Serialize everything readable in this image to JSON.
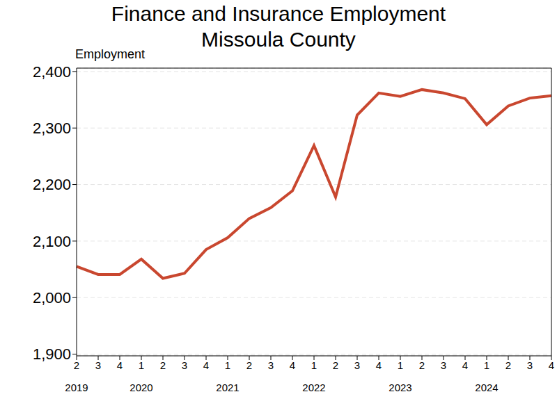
{
  "chart_data": {
    "type": "line",
    "title": "Finance and Insurance Employment",
    "subtitle": "Missoula County",
    "y_label": "Employment",
    "categories": [
      "2",
      "3",
      "4",
      "1",
      "2",
      "3",
      "4",
      "1",
      "2",
      "3",
      "4",
      "1",
      "2",
      "3",
      "4",
      "1",
      "2",
      "3",
      "4",
      "1",
      "2",
      "3",
      "4"
    ],
    "category_groups": [
      "2019",
      null,
      null,
      "2020",
      null,
      null,
      null,
      "2021",
      null,
      null,
      null,
      "2022",
      null,
      null,
      null,
      "2023",
      null,
      null,
      null,
      "2024",
      null,
      null,
      null
    ],
    "series": [
      {
        "name": "Employment",
        "color": "#c9472f",
        "values": [
          2055,
          2041,
          2041,
          2068,
          2034,
          2043,
          2085,
          2106,
          2140,
          2159,
          2189,
          2269,
          2178,
          2323,
          2362,
          2356,
          2368,
          2362,
          2352,
          2306,
          2339,
          2353,
          2357
        ]
      }
    ],
    "marker": "none",
    "ylim": [
      1897,
      2406
    ],
    "yticks": [
      {
        "value": 1900,
        "label": "1,900"
      },
      {
        "value": 2000,
        "label": "2,000"
      },
      {
        "value": 2100,
        "label": "2,100"
      },
      {
        "value": 2200,
        "label": "2,200"
      },
      {
        "value": 2300,
        "label": "2,300"
      },
      {
        "value": 2400,
        "label": "2,400"
      }
    ],
    "grid": true
  }
}
